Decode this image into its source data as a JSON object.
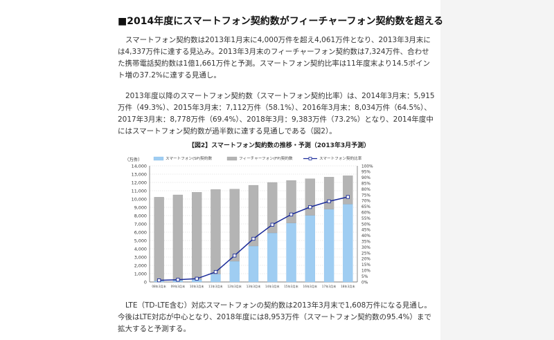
{
  "heading": "■2014年度にスマートフォン契約数がフィーチャーフォン契約数を超える",
  "paragraphs": [
    "スマートフォン契約数は2013年1月末に4,000万件を超え4,061万件となり、2013年3月末には4,337万件に達する見込み。2013年3月末のフィーチャーフォン契約数は7,324万件、合わせた携帯電話契約数は1億1,661万件と予測。スマートフォン契約比率は11年度末より14.5ポイント増の37.2%に達する見通し。",
    "2013年度以降のスマートフォン契約数（スマートフォン契約比率）は、2014年3月末：5,915万件（49.3%）、2015年3月末：7,112万件（58.1%）、2016年3月末：8,034万件（64.5%）、2017年3月末：8,778万件（69.4%）、2018年3月：9,383万件（73.2%）となり、2014年度中にはスマートフォン契約数が過半数に達する見通しである（図2）。",
    "LTE（TD-LTE含む）対応スマートフォンの契約数は2013年3月末で1,608万件になる見通し。今後はLTE対応が中心となり、2018年度には8,953万件（スマートフォン契約数の95.4%）まで拡大すると予測する。"
  ],
  "chart_data": {
    "type": "bar",
    "title": "【図2】スマートフォン契約数の推移・予測（2013年3月予測）",
    "ylabel": "（万件）",
    "ylim": [
      0,
      14000
    ],
    "y2lim": [
      0,
      100
    ],
    "yticks": [
      "0",
      "1,000",
      "2,000",
      "3,000",
      "4,000",
      "5,000",
      "6,000",
      "7,000",
      "8,000",
      "9,000",
      "10,000",
      "11,000",
      "12,000",
      "13,000",
      "14,000"
    ],
    "y2ticks": [
      "0%",
      "5%",
      "10%",
      "15%",
      "20%",
      "25%",
      "30%",
      "35%",
      "40%",
      "45%",
      "50%",
      "55%",
      "60%",
      "65%",
      "70%",
      "75%",
      "80%",
      "85%",
      "90%",
      "95%",
      "100%"
    ],
    "categories": [
      "08年3月末",
      "09年3月末",
      "10年3月末",
      "11年3月末",
      "12年3月末",
      "13年3月末",
      "14年3月末",
      "15年3月末",
      "16年3月末",
      "17年3月末",
      "18年3月末"
    ],
    "series": [
      {
        "name": "スマートフォン(SP)契約数",
        "kind": "stacked-bar",
        "color": "#9fcdf2",
        "values": [
          140,
          200,
          300,
          960,
          2500,
          4337,
          5915,
          7112,
          8034,
          8778,
          9383
        ]
      },
      {
        "name": "フィーチャーフォン(FP)契約数",
        "kind": "stacked-bar",
        "color": "#b4b4b4",
        "values": [
          10080,
          10300,
          10520,
          10200,
          8700,
          7324,
          6086,
          5128,
          4416,
          3872,
          3434
        ]
      },
      {
        "name": "スマートフォン契約比率",
        "kind": "line",
        "axis": "right",
        "color": "#1a2b9a",
        "values": [
          1.4,
          1.9,
          2.8,
          8.6,
          22.7,
          37.2,
          49.3,
          58.1,
          64.5,
          69.4,
          73.2
        ]
      }
    ],
    "grid": true,
    "legend": "top"
  }
}
